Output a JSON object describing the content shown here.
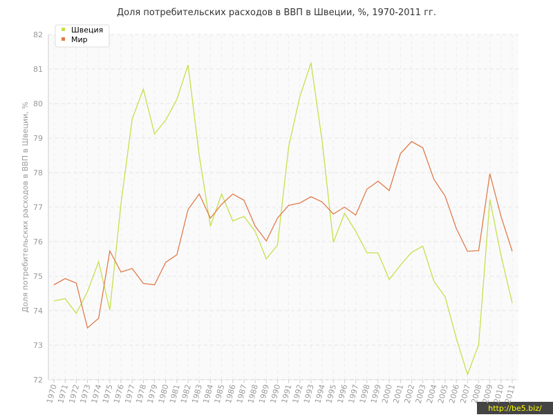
{
  "chart_data": {
    "type": "line",
    "title": "Доля потребительских расходов в ВВП в Швеции, %, 1970-2011 гг.",
    "y_label": "Доля потребительских расходов в ВВП в Швеции, %",
    "categories": [
      "1970",
      "1971",
      "1972",
      "1973",
      "1974",
      "1975",
      "1976",
      "1977",
      "1978",
      "1979",
      "1980",
      "1981",
      "1982",
      "1983",
      "1984",
      "1985",
      "1986",
      "1987",
      "1988",
      "1989",
      "1990",
      "1991",
      "1992",
      "1993",
      "1994",
      "1995",
      "1996",
      "1997",
      "1998",
      "1999",
      "2000",
      "2001",
      "2002",
      "2003",
      "2004",
      "2005",
      "2006",
      "2007",
      "2008",
      "2009",
      "2010",
      "2011"
    ],
    "series": [
      {
        "name": "Швеция",
        "color": "#c5e04a",
        "values": [
          74.28,
          74.35,
          73.92,
          74.55,
          75.42,
          74.02,
          77.1,
          79.55,
          80.42,
          79.12,
          79.52,
          80.12,
          81.12,
          78.5,
          76.45,
          77.38,
          76.6,
          76.73,
          76.3,
          75.5,
          75.9,
          78.75,
          80.2,
          81.18,
          78.9,
          75.98,
          76.82,
          76.3,
          75.68,
          75.67,
          74.9,
          75.32,
          75.69,
          75.87,
          74.85,
          74.4,
          73.2,
          72.15,
          73.02,
          77.22,
          75.6,
          74.22
        ]
      },
      {
        "name": "Мир",
        "color": "#e07a4a",
        "values": [
          74.75,
          74.93,
          74.8,
          73.5,
          73.78,
          75.73,
          75.12,
          75.22,
          74.79,
          74.75,
          75.4,
          75.62,
          76.93,
          77.38,
          76.68,
          77.08,
          77.38,
          77.2,
          76.45,
          76.02,
          76.68,
          77.05,
          77.12,
          77.3,
          77.15,
          76.8,
          77.0,
          76.77,
          77.52,
          77.75,
          77.48,
          78.55,
          78.9,
          78.72,
          77.8,
          77.32,
          76.38,
          75.72,
          75.74,
          77.97,
          76.73,
          75.72
        ]
      }
    ],
    "ylim": [
      72,
      82
    ],
    "yticks": [
      72,
      73,
      74,
      75,
      76,
      77,
      78,
      79,
      80,
      81,
      82
    ],
    "grid": true,
    "watermark": "http://be5.biz/"
  }
}
